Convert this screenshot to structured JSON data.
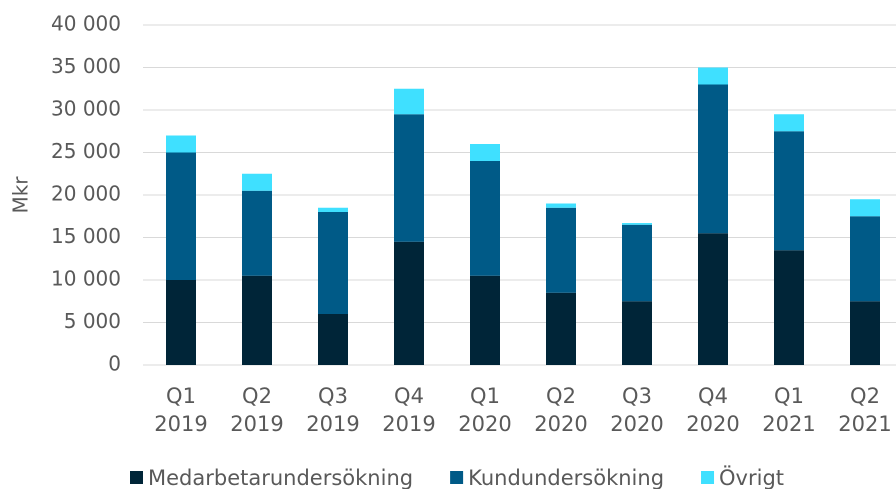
{
  "chart_data": {
    "type": "stacked_bar",
    "y_label": "Mkr",
    "categories": [
      "Q1 2019",
      "Q2 2019",
      "Q3 2019",
      "Q4 2019",
      "Q1 2020",
      "Q2 2020",
      "Q3 2020",
      "Q4 2020",
      "Q1 2021",
      "Q2 2021"
    ],
    "series": [
      {
        "name": "Medarbetarundersökning",
        "color": "#002538",
        "values": [
          10000,
          10500,
          6000,
          14500,
          10500,
          8500,
          7500,
          15500,
          13500,
          7500
        ]
      },
      {
        "name": "Kundundersökning",
        "color": "#005a87",
        "values": [
          15000,
          10000,
          12000,
          15000,
          13500,
          10000,
          9000,
          17500,
          14000,
          10000
        ]
      },
      {
        "name": "Övrigt",
        "color": "#3fe0ff",
        "values": [
          2000,
          2000,
          500,
          3000,
          2000,
          500,
          200,
          2000,
          2000,
          2000
        ]
      }
    ],
    "ylim": [
      0,
      40000
    ],
    "yticks": [
      0,
      {
        "value": 5000,
        "label": "5 000"
      },
      {
        "value": 10000,
        "label": "10 000"
      },
      {
        "value": 15000,
        "label": "15 000"
      },
      {
        "value": 20000,
        "label": "20 000"
      },
      {
        "value": 25000,
        "label": "25 000"
      },
      {
        "value": 30000,
        "label": "30 000"
      },
      {
        "value": 35000,
        "label": "35 000"
      },
      {
        "value": 40000,
        "label": "40 000"
      }
    ],
    "grid": true,
    "legend": "bottom"
  }
}
